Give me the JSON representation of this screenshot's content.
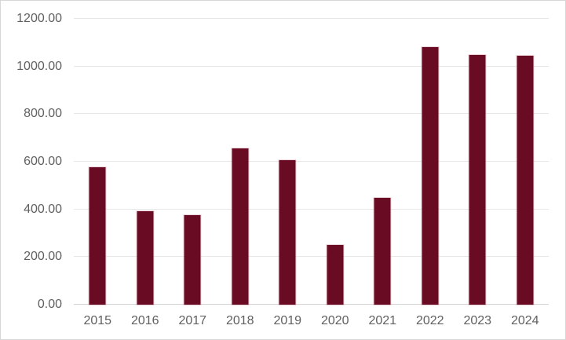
{
  "chart_data": {
    "type": "bar",
    "title": "",
    "xlabel": "",
    "ylabel": "",
    "categories": [
      "2015",
      "2016",
      "2017",
      "2018",
      "2019",
      "2020",
      "2021",
      "2022",
      "2023",
      "2024"
    ],
    "values": [
      578,
      394,
      376,
      656,
      606,
      252,
      447,
      1081,
      1049,
      1044
    ],
    "ylim": [
      0,
      1200
    ],
    "ytick_interval": 200,
    "yticks": [
      0,
      200,
      400,
      600,
      800,
      1000,
      1200
    ],
    "ytick_labels": [
      "0.00",
      "200.00",
      "400.00",
      "600.00",
      "800.00",
      "1000.00",
      "1200.00"
    ],
    "grid": true,
    "legend_position": "none",
    "colors": {
      "bar_fill": "#6a0b24",
      "gridline": "#e7e7e7",
      "axis_line": "#d2d2d2",
      "tick_label": "#606060",
      "frame_border": "#d7d7d7",
      "background": "#ffffff"
    }
  }
}
